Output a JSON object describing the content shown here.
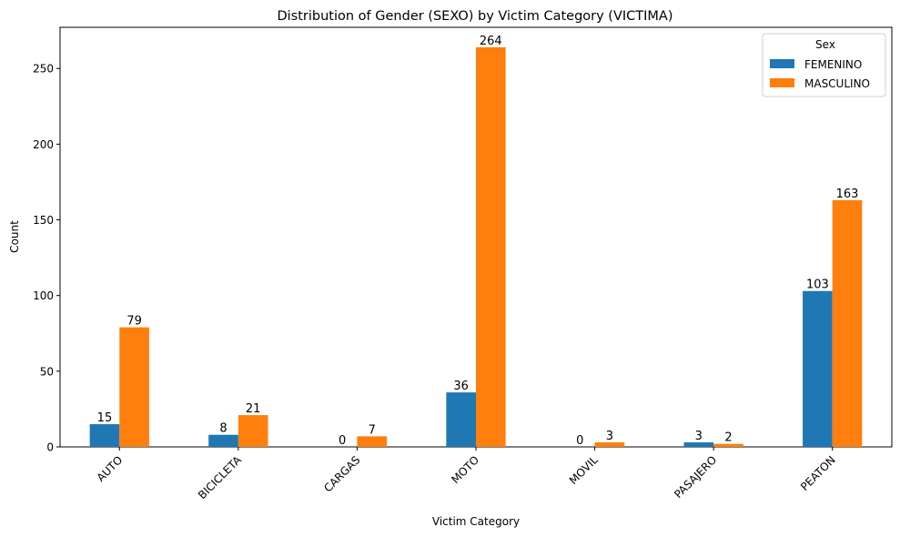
{
  "chart_data": {
    "type": "bar",
    "title": "Distribution of Gender (SEXO) by Victim Category (VICTIMA)",
    "xlabel": "Victim Category",
    "ylabel": "Count",
    "categories": [
      "AUTO",
      "BICICLETA",
      "CARGAS",
      "MOTO",
      "MOVIL",
      "PASAJERO",
      "PEATON"
    ],
    "series": [
      {
        "name": "FEMENINO",
        "color": "#1f77b4",
        "values": [
          15,
          8,
          0,
          36,
          0,
          3,
          103
        ]
      },
      {
        "name": "MASCULINO",
        "color": "#ff7f0e",
        "values": [
          79,
          21,
          7,
          264,
          3,
          2,
          163
        ]
      }
    ],
    "ylim": [
      0,
      277.2
    ],
    "yticks": [
      0,
      50,
      100,
      150,
      200,
      250
    ],
    "grid": false,
    "legend": {
      "title": "Sex",
      "position": "top-right"
    },
    "xtick_rotation": 45
  }
}
